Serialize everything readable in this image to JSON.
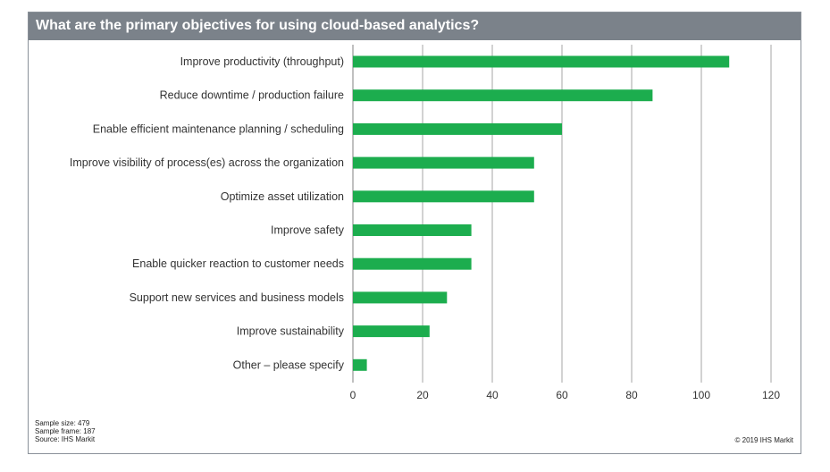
{
  "title": "What are the primary objectives for using cloud-based analytics?",
  "colors": {
    "bar": "#1cad4e",
    "gridline": "#a6a6a6",
    "title_bg": "#7b828a"
  },
  "footnotes": {
    "sample_size": "Sample size: 479",
    "sample_frame": "Sample frame: 187",
    "source": "Source: IHS Markit"
  },
  "copyright": "© 2019 IHS Markit",
  "chart_data": {
    "type": "bar",
    "orientation": "horizontal",
    "categories": [
      "Improve productivity (throughput)",
      "Reduce downtime / production failure",
      "Enable efficient maintenance planning / scheduling",
      "Improve visibility of process(es) across the organization",
      "Optimize asset utilization",
      "Improve safety",
      "Enable quicker reaction to customer needs",
      "Support new services and business models",
      "Improve sustainability",
      "Other – please specify"
    ],
    "values": [
      108,
      86,
      60,
      52,
      52,
      34,
      34,
      27,
      22,
      4
    ],
    "xlim": [
      0,
      120
    ],
    "xticks": [
      0,
      20,
      40,
      60,
      80,
      100,
      120
    ],
    "grid": true,
    "legend": "none"
  }
}
